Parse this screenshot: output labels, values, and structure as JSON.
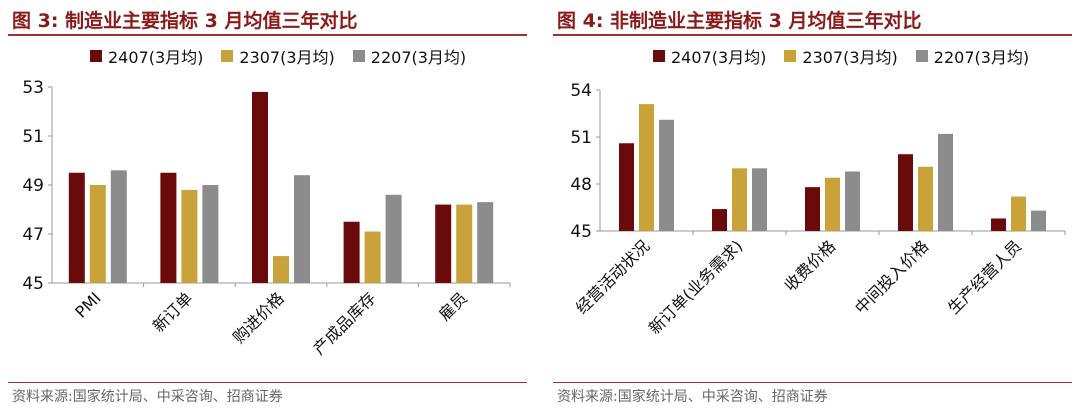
{
  "colors": {
    "s2407": "#6B0A0A",
    "s2307": "#C9A23A",
    "s2207": "#8C8C8C",
    "title": "#8B1A1A"
  },
  "figures": [
    {
      "title": "图 3:  制造业主要指标 3 月均值三年对比",
      "source": "资料来源:国家统计局、中采咨询、招商证券"
    },
    {
      "title": "图 4:  非制造业主要指标 3 月均值三年对比",
      "source": "资料来源:国家统计局、中采咨询、招商证券"
    }
  ],
  "chart_data": [
    {
      "type": "bar",
      "title": "",
      "xlabel": "",
      "ylabel": "",
      "ylim": [
        45,
        53
      ],
      "yticks": [
        45,
        47,
        49,
        51,
        53
      ],
      "grid": false,
      "legend": "top",
      "categories": [
        "PMI",
        "新订单",
        "购进价格",
        "产成品库存",
        "雇员"
      ],
      "series": [
        {
          "name": "2407(3月均)",
          "values": [
            49.5,
            49.5,
            52.8,
            47.5,
            48.2
          ]
        },
        {
          "name": "2307(3月均)",
          "values": [
            49.0,
            48.8,
            46.1,
            47.1,
            48.2
          ]
        },
        {
          "name": "2207(3月均)",
          "values": [
            49.6,
            49.0,
            49.4,
            48.6,
            48.3
          ]
        }
      ]
    },
    {
      "type": "bar",
      "title": "",
      "xlabel": "",
      "ylabel": "",
      "ylim": [
        45,
        54
      ],
      "yticks": [
        45,
        48,
        51,
        54
      ],
      "grid": false,
      "legend": "top",
      "categories": [
        "经营活动状况",
        "新订单(业务需求)",
        "收费价格",
        "中间投入价格",
        "生产经营人员"
      ],
      "series": [
        {
          "name": "2407(3月均)",
          "values": [
            50.6,
            46.4,
            47.8,
            49.9,
            45.8
          ]
        },
        {
          "name": "2307(3月均)",
          "values": [
            53.1,
            49.0,
            48.4,
            49.1,
            47.2
          ]
        },
        {
          "name": "2207(3月均)",
          "values": [
            52.1,
            49.0,
            48.8,
            51.2,
            46.3
          ]
        }
      ]
    }
  ]
}
